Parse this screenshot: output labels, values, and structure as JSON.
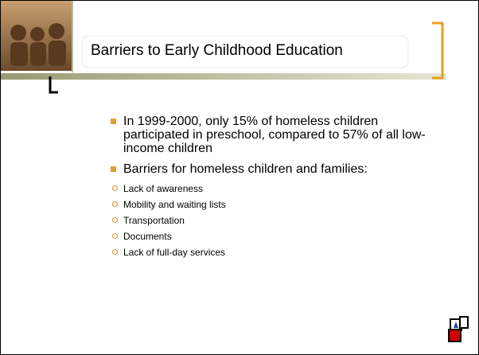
{
  "slide": {
    "title": "Barriers to Early Childhood Education",
    "bullets": [
      {
        "text": "In 1999-2000, only 15% of homeless children participated in preschool, compared to 57% of all low-income children"
      },
      {
        "text": "Barriers for homeless children and families:",
        "subitems": [
          "Lack of awareness",
          "Mobility and waiting lists",
          "Transportation",
          "Documents",
          "Lack of full-day services"
        ]
      }
    ]
  }
}
